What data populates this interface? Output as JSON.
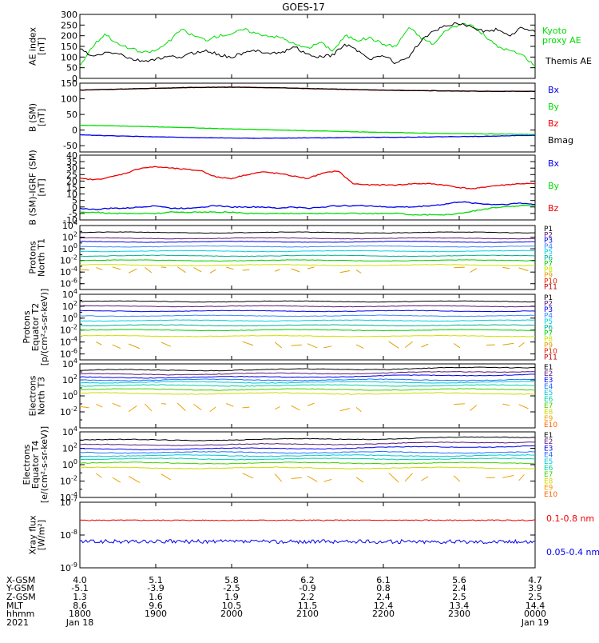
{
  "title": "GOES-17",
  "colors": {
    "black": "#000000",
    "red": "#ee0000",
    "green": "#00dd00",
    "blue": "#0000ee",
    "p_colors": [
      "#000000",
      "#5a1a7a",
      "#0000ee",
      "#3a8aff",
      "#00d0e0",
      "#00b090",
      "#00d000",
      "#d0e000",
      "#e0a000",
      "#e02000",
      "#c00000"
    ],
    "e_colors": [
      "#000000",
      "#5a1a7a",
      "#0000ee",
      "#2070ff",
      "#00c8d8",
      "#00d0a0",
      "#40d000",
      "#d0d800",
      "#f0a000",
      "#ff6000",
      "#e02000",
      "#c00000"
    ]
  },
  "chart_data": [
    {
      "type": "line",
      "id": "ae",
      "ylabel_lines": [
        "AE index",
        "[nT]"
      ],
      "ylim": [
        0,
        300
      ],
      "yticks": [
        "0",
        "50",
        "100",
        "150",
        "200",
        "250",
        "300"
      ],
      "series": [
        {
          "name": "Kyoto proxy AE",
          "label_lines": [
            "Kyoto",
            "proxy AE"
          ],
          "color": "#00dd00",
          "values": [
            60,
            150,
            210,
            160,
            140,
            120,
            130,
            170,
            230,
            200,
            180,
            200,
            210,
            230,
            210,
            200,
            190,
            160,
            140,
            170,
            130,
            200,
            180,
            190,
            160,
            150,
            240,
            190,
            160,
            230,
            250,
            250,
            200,
            150,
            130,
            110,
            60
          ]
        },
        {
          "name": "Themis AE",
          "label_lines": [
            "Themis AE"
          ],
          "color": "#000000",
          "values": [
            140,
            100,
            120,
            120,
            90,
            80,
            90,
            100,
            100,
            120,
            130,
            110,
            100,
            120,
            130,
            120,
            120,
            150,
            110,
            100,
            110,
            160,
            130,
            90,
            110,
            70,
            100,
            180,
            220,
            250,
            260,
            240,
            220,
            230,
            200,
            240,
            220
          ]
        }
      ]
    },
    {
      "type": "line",
      "id": "bsm",
      "ylabel_lines": [
        "B (SM)",
        "[nT]"
      ],
      "ylim": [
        -70,
        150
      ],
      "yticks": [
        "-50",
        "0",
        "50",
        "100",
        "150"
      ],
      "series": [
        {
          "name": "Bx",
          "color": "#0000ee",
          "values": [
            -15,
            -18,
            -20,
            -22,
            -24,
            -25,
            -26,
            -26,
            -25,
            -25,
            -24,
            -23,
            -23,
            -22,
            -21,
            -20,
            -18,
            -17
          ]
        },
        {
          "name": "By",
          "color": "#00dd00",
          "values": [
            15,
            14,
            12,
            10,
            8,
            5,
            3,
            1,
            -1,
            -3,
            -5,
            -7,
            -8,
            -10,
            -11,
            -12,
            -13,
            -14
          ]
        },
        {
          "name": "Bz",
          "color": "#ee0000",
          "values": [
            128,
            130,
            132,
            134,
            136,
            137,
            137,
            136,
            134,
            132,
            130,
            128,
            127,
            126,
            125,
            124,
            124,
            124
          ]
        },
        {
          "name": "Bmag",
          "color": "#000000",
          "values": [
            128,
            130,
            132,
            134,
            136,
            137,
            137,
            136,
            134,
            132,
            130,
            128,
            127,
            126,
            125,
            124,
            124,
            124
          ]
        }
      ]
    },
    {
      "type": "line",
      "id": "digrf",
      "ylabel_lines": [
        "B (SM)-IGRF (SM)",
        "[nT]"
      ],
      "ylim": [
        -10,
        40
      ],
      "yticks": [
        "-10",
        "-5",
        "0",
        "5",
        "10",
        "15",
        "20",
        "25",
        "30",
        "35",
        "40"
      ],
      "series": [
        {
          "name": "Bx",
          "color": "#0000ee",
          "values": [
            -1,
            -2,
            -1,
            -1,
            0,
            1,
            -1,
            -1,
            0,
            1,
            0,
            0,
            0,
            -1,
            0,
            -1,
            0,
            1,
            1,
            1,
            0,
            0,
            0,
            1,
            2,
            4,
            3,
            2,
            2,
            3,
            2
          ]
        },
        {
          "name": "By",
          "color": "#00dd00",
          "values": [
            -4,
            -4,
            -5,
            -5,
            -5,
            -5,
            -4,
            -4,
            -4,
            -4,
            -4,
            -5,
            -5,
            -5,
            -5,
            -5,
            -5,
            -5,
            -5,
            -5,
            -5,
            -5,
            -6,
            -6,
            -6,
            -5,
            -3,
            -1,
            0,
            1,
            1
          ]
        },
        {
          "name": "Bz",
          "color": "#ee0000",
          "values": [
            22,
            21,
            23,
            26,
            30,
            31,
            30,
            29,
            28,
            23,
            22,
            25,
            27,
            26,
            24,
            22,
            26,
            28,
            18,
            17,
            17,
            17,
            18,
            18,
            17,
            15,
            14,
            16,
            17,
            18,
            18
          ]
        }
      ]
    },
    {
      "type": "line",
      "id": "p_n",
      "log": true,
      "ylabel_lines": [
        "Protons",
        "North T1"
      ],
      "ylim_exp": [
        -7,
        4
      ],
      "yticks": [
        {
          "exp": 4,
          "label": "10^4"
        },
        {
          "exp": 2,
          "label": "10^2"
        },
        {
          "exp": 0,
          "label": "10^0"
        },
        {
          "exp": -2,
          "label": "10^-2"
        },
        {
          "exp": -4,
          "label": "10^-4"
        },
        {
          "exp": -6,
          "label": "10^-6"
        }
      ],
      "channels": [
        "P1",
        "P2",
        "P3",
        "P4",
        "P5",
        "P6",
        "P7",
        "P8",
        "P9",
        "P10",
        "P11"
      ],
      "levels_exp": [
        2.8,
        1.8,
        1.2,
        0.4,
        -0.4,
        -1.2,
        -2.0,
        -2.8,
        -3.6
      ]
    },
    {
      "type": "line",
      "id": "p_eq",
      "log": true,
      "ylabel_lines": [
        "Protons",
        "Equator T2",
        "[p/(cm²-s-sr-keV)]"
      ],
      "ylim_exp": [
        -7,
        4
      ],
      "yticks": [
        {
          "exp": 4,
          "label": "10^4"
        },
        {
          "exp": 2,
          "label": "10^2"
        },
        {
          "exp": 0,
          "label": "10^0"
        },
        {
          "exp": -2,
          "label": "10^-2"
        },
        {
          "exp": -4,
          "label": "10^-4"
        },
        {
          "exp": -6,
          "label": "10^-6"
        }
      ],
      "channels": [
        "P1",
        "P2",
        "P3",
        "P4",
        "P5",
        "P6",
        "P7",
        "P8",
        "P9",
        "P10",
        "P11"
      ],
      "levels_exp": [
        2.8,
        2.0,
        1.2,
        0.4,
        -0.4,
        -1.2,
        -2.0,
        -3.0,
        -4.5
      ]
    },
    {
      "type": "line",
      "id": "e_n",
      "log": true,
      "ylabel_lines": [
        "Electrons",
        "North T3"
      ],
      "ylim_exp": [
        -4,
        4
      ],
      "yticks": [
        {
          "exp": 4,
          "label": "10^4"
        },
        {
          "exp": 2,
          "label": "10^2"
        },
        {
          "exp": 0,
          "label": "10^0"
        },
        {
          "exp": -2,
          "label": "10^-2"
        }
      ],
      "channels": [
        "E1",
        "E2",
        "E3",
        "E4",
        "E5",
        "E6",
        "E7",
        "E8",
        "E9",
        "E10"
      ],
      "levels_exp": [
        3.2,
        2.7,
        2.3,
        2.0,
        1.7,
        1.3,
        0.8,
        0.3,
        -1.4
      ]
    },
    {
      "type": "line",
      "id": "e_eq",
      "log": true,
      "ylabel_lines": [
        "Electrons",
        "Equator T4",
        "[e/(cm²-s-sr-keV)]"
      ],
      "ylim_exp": [
        -4,
        4
      ],
      "yticks": [
        {
          "exp": 4,
          "label": "10^4"
        },
        {
          "exp": 2,
          "label": "10^2"
        },
        {
          "exp": 0,
          "label": "10^0"
        },
        {
          "exp": -2,
          "label": "10^-2"
        },
        {
          "exp": -4,
          "label": "10^-4"
        }
      ],
      "channels": [
        "E1",
        "E2",
        "E3",
        "E4",
        "E5",
        "E6",
        "E7",
        "E8",
        "E9",
        "E10"
      ],
      "levels_exp": [
        3.0,
        2.4,
        1.9,
        1.5,
        1.1,
        0.7,
        0.2,
        -0.4,
        -1.6
      ]
    },
    {
      "type": "line",
      "id": "xray",
      "log": true,
      "ylabel_lines": [
        "Xray flux",
        "[W/m²]"
      ],
      "ylim_exp": [
        -9,
        -7
      ],
      "yticks": [
        {
          "exp": -7,
          "label": "10^-7"
        },
        {
          "exp": -8,
          "label": "10^-8"
        },
        {
          "exp": -9,
          "label": "10^-9"
        }
      ],
      "series": [
        {
          "name": "0.1-0.8 nm",
          "color": "#ee0000",
          "level_exp": -7.55
        },
        {
          "name": "0.05-0.4 nm",
          "color": "#0000ee",
          "level_exp": -8.2
        }
      ]
    }
  ],
  "xaxis": {
    "row_labels": [
      "X-GSM",
      "Y-GSM",
      "Z-GSM",
      "MLT",
      "hhmm",
      "2021"
    ],
    "columns": [
      [
        "4.0",
        "-5.1",
        "1.3",
        "8.6",
        "1800",
        "Jan 18"
      ],
      [
        "5.1",
        "-3.9",
        "1.6",
        "9.6",
        "1900",
        ""
      ],
      [
        "5.8",
        "-2.5",
        "1.9",
        "10.5",
        "2000",
        ""
      ],
      [
        "6.2",
        "-0.9",
        "2.2",
        "11.5",
        "2100",
        ""
      ],
      [
        "6.1",
        "0.8",
        "2.4",
        "12.4",
        "2200",
        ""
      ],
      [
        "5.6",
        "2.4",
        "2.5",
        "13.4",
        "2300",
        ""
      ],
      [
        "4.7",
        "3.9",
        "2.5",
        "14.4",
        "0000",
        "Jan 19"
      ]
    ]
  }
}
